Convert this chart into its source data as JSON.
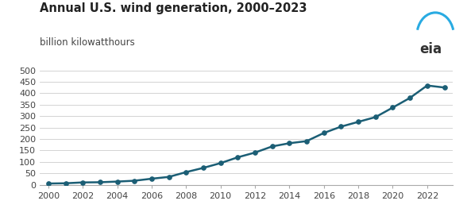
{
  "title": "Annual U.S. wind generation, 2000–2023",
  "subtitle": "billion kilowatthours",
  "line_color_hex": "#1b5e75",
  "background_color": "#ffffff",
  "grid_color": "#cccccc",
  "years": [
    2000,
    2001,
    2002,
    2003,
    2004,
    2005,
    2006,
    2007,
    2008,
    2009,
    2010,
    2011,
    2012,
    2013,
    2014,
    2015,
    2016,
    2017,
    2018,
    2019,
    2020,
    2021,
    2022,
    2023
  ],
  "values": [
    5.6,
    6.7,
    10.4,
    11.2,
    14.1,
    17.8,
    26.6,
    34.5,
    55.4,
    73.9,
    94.7,
    120.2,
    140.8,
    167.8,
    181.7,
    190.9,
    226.5,
    254.3,
    275.1,
    295.9,
    337.5,
    379.8,
    434.0,
    425.2
  ],
  "ylim": [
    0,
    500
  ],
  "yticks": [
    0,
    50,
    100,
    150,
    200,
    250,
    300,
    350,
    400,
    450,
    500
  ],
  "xticks": [
    2000,
    2002,
    2004,
    2006,
    2008,
    2010,
    2012,
    2014,
    2016,
    2018,
    2020,
    2022
  ],
  "title_fontsize": 10.5,
  "subtitle_fontsize": 8.5,
  "tick_fontsize": 8,
  "line_width": 1.8,
  "marker_size": 3.8,
  "bottom_spine_color": "#aaaaaa",
  "tick_color": "#444444",
  "title_color": "#222222",
  "subtitle_color": "#444444",
  "eia_text_color": "#333333",
  "eia_arc_color": "#29ABE2"
}
